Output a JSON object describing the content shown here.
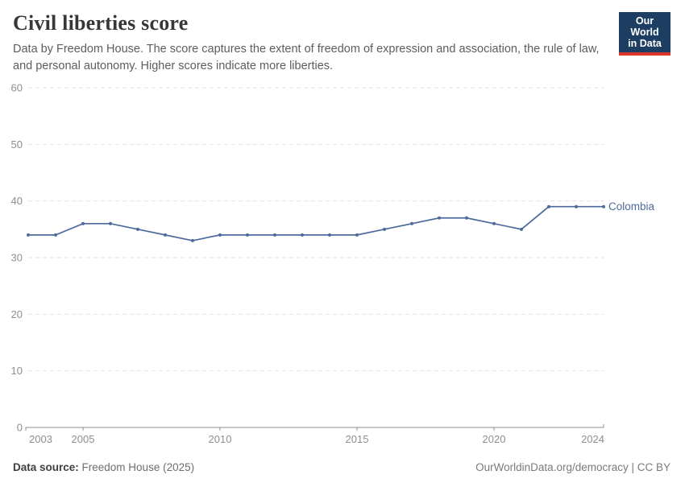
{
  "header": {
    "title": "Civil liberties score",
    "subtitle": "Data by Freedom House. The score captures the extent of freedom of expression and association, the rule of law, and personal autonomy. Higher scores indicate more liberties.",
    "logo": {
      "line1": "Our World",
      "line2": "in Data",
      "bg_color": "#1d3d63",
      "accent_color": "#dc352b"
    }
  },
  "chart_data": {
    "type": "line",
    "title": "Civil liberties score",
    "x": [
      2003,
      2004,
      2005,
      2006,
      2007,
      2008,
      2009,
      2010,
      2011,
      2012,
      2013,
      2014,
      2015,
      2016,
      2017,
      2018,
      2019,
      2020,
      2021,
      2022,
      2023,
      2024
    ],
    "series": [
      {
        "name": "Colombia",
        "color": "#4c6a9c",
        "values": [
          34,
          34,
          36,
          36,
          35,
          34,
          33,
          34,
          34,
          34,
          34,
          34,
          34,
          35,
          36,
          37,
          37,
          36,
          35,
          39,
          39,
          39
        ]
      }
    ],
    "xlabel": "",
    "ylabel": "",
    "xlim": [
      2003,
      2024
    ],
    "ylim": [
      0,
      60
    ],
    "yticks": [
      0,
      10,
      20,
      30,
      40,
      50,
      60
    ],
    "xticks": [
      2003,
      2005,
      2010,
      2015,
      2020,
      2024
    ],
    "grid": "horizontal-dashed",
    "legend_position": "end-of-line",
    "end_label": "Colombia",
    "colors": {
      "grid": "#e2e2e2",
      "axis": "#8f8f8f",
      "tick_label": "#8e8e8e"
    }
  },
  "footer": {
    "source_label": "Data source:",
    "source_value": " Freedom House (2025)",
    "credit": "OurWorldinData.org/democracy | CC BY"
  }
}
